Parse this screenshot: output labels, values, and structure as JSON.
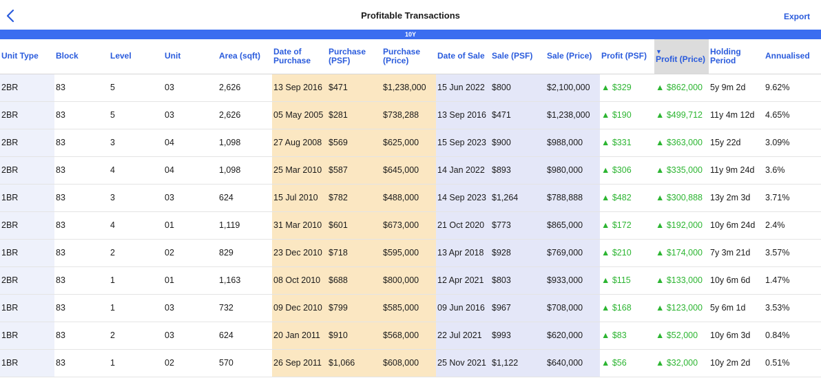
{
  "nav": {
    "title": "Profitable Transactions",
    "export_label": "Export",
    "back_icon": "chevron-left-icon"
  },
  "period": "10Y",
  "columns": [
    {
      "key": "unit_type",
      "label": "Unit Type"
    },
    {
      "key": "block",
      "label": "Block"
    },
    {
      "key": "level",
      "label": "Level"
    },
    {
      "key": "unit",
      "label": "Unit"
    },
    {
      "key": "area",
      "label": "Area (sqft)"
    },
    {
      "key": "date_purchase",
      "label": "Date of Purchase"
    },
    {
      "key": "purchase_psf",
      "label": "Purchase (PSF)"
    },
    {
      "key": "purchase_price",
      "label": "Purchase (Price)"
    },
    {
      "key": "date_sale",
      "label": "Date of Sale"
    },
    {
      "key": "sale_psf",
      "label": "Sale (PSF)"
    },
    {
      "key": "sale_price",
      "label": "Sale (Price)"
    },
    {
      "key": "profit_psf",
      "label": "Profit (PSF)"
    },
    {
      "key": "profit_price",
      "label": "Profit (Price)",
      "sorted": "▼"
    },
    {
      "key": "holding",
      "label": "Holding Period"
    },
    {
      "key": "annualised",
      "label": "Annualised"
    }
  ],
  "rows": [
    {
      "unit_type": "2BR",
      "block": "83",
      "level": "5",
      "unit": "03",
      "area": "2,626",
      "date_purchase": "13 Sep 2016",
      "purchase_psf": "$471",
      "purchase_price": "$1,238,000",
      "date_sale": "15 Jun 2022",
      "sale_psf": "$800",
      "sale_price": "$2,100,000",
      "profit_psf": "$329",
      "profit_price": "$862,000",
      "holding": "5y 9m 2d",
      "annualised": "9.62%"
    },
    {
      "unit_type": "2BR",
      "block": "83",
      "level": "5",
      "unit": "03",
      "area": "2,626",
      "date_purchase": "05 May 2005",
      "purchase_psf": "$281",
      "purchase_price": "$738,288",
      "date_sale": "13 Sep 2016",
      "sale_psf": "$471",
      "sale_price": "$1,238,000",
      "profit_psf": "$190",
      "profit_price": "$499,712",
      "holding": "11y 4m 12d",
      "annualised": "4.65%"
    },
    {
      "unit_type": "2BR",
      "block": "83",
      "level": "3",
      "unit": "04",
      "area": "1,098",
      "date_purchase": "27 Aug 2008",
      "purchase_psf": "$569",
      "purchase_price": "$625,000",
      "date_sale": "15 Sep 2023",
      "sale_psf": "$900",
      "sale_price": "$988,000",
      "profit_psf": "$331",
      "profit_price": "$363,000",
      "holding": "15y 22d",
      "annualised": "3.09%"
    },
    {
      "unit_type": "2BR",
      "block": "83",
      "level": "4",
      "unit": "04",
      "area": "1,098",
      "date_purchase": "25 Mar 2010",
      "purchase_psf": "$587",
      "purchase_price": "$645,000",
      "date_sale": "14 Jan 2022",
      "sale_psf": "$893",
      "sale_price": "$980,000",
      "profit_psf": "$306",
      "profit_price": "$335,000",
      "holding": "11y 9m 24d",
      "annualised": "3.6%"
    },
    {
      "unit_type": "1BR",
      "block": "83",
      "level": "3",
      "unit": "03",
      "area": "624",
      "date_purchase": "15 Jul 2010",
      "purchase_psf": "$782",
      "purchase_price": "$488,000",
      "date_sale": "14 Sep 2023",
      "sale_psf": "$1,264",
      "sale_price": "$788,888",
      "profit_psf": "$482",
      "profit_price": "$300,888",
      "holding": "13y 2m 3d",
      "annualised": "3.71%"
    },
    {
      "unit_type": "2BR",
      "block": "83",
      "level": "4",
      "unit": "01",
      "area": "1,119",
      "date_purchase": "31 Mar 2010",
      "purchase_psf": "$601",
      "purchase_price": "$673,000",
      "date_sale": "21 Oct 2020",
      "sale_psf": "$773",
      "sale_price": "$865,000",
      "profit_psf": "$172",
      "profit_price": "$192,000",
      "holding": "10y 6m 24d",
      "annualised": "2.4%"
    },
    {
      "unit_type": "1BR",
      "block": "83",
      "level": "2",
      "unit": "02",
      "area": "829",
      "date_purchase": "23 Dec 2010",
      "purchase_psf": "$718",
      "purchase_price": "$595,000",
      "date_sale": "13 Apr 2018",
      "sale_psf": "$928",
      "sale_price": "$769,000",
      "profit_psf": "$210",
      "profit_price": "$174,000",
      "holding": "7y 3m 21d",
      "annualised": "3.57%"
    },
    {
      "unit_type": "2BR",
      "block": "83",
      "level": "1",
      "unit": "01",
      "area": "1,163",
      "date_purchase": "08 Oct 2010",
      "purchase_psf": "$688",
      "purchase_price": "$800,000",
      "date_sale": "12 Apr 2021",
      "sale_psf": "$803",
      "sale_price": "$933,000",
      "profit_psf": "$115",
      "profit_price": "$133,000",
      "holding": "10y 6m 6d",
      "annualised": "1.47%"
    },
    {
      "unit_type": "1BR",
      "block": "83",
      "level": "1",
      "unit": "03",
      "area": "732",
      "date_purchase": "09 Dec 2010",
      "purchase_psf": "$799",
      "purchase_price": "$585,000",
      "date_sale": "09 Jun 2016",
      "sale_psf": "$967",
      "sale_price": "$708,000",
      "profit_psf": "$168",
      "profit_price": "$123,000",
      "holding": "5y 6m 1d",
      "annualised": "3.53%"
    },
    {
      "unit_type": "1BR",
      "block": "83",
      "level": "2",
      "unit": "03",
      "area": "624",
      "date_purchase": "20 Jan 2011",
      "purchase_psf": "$910",
      "purchase_price": "$568,000",
      "date_sale": "22 Jul 2021",
      "sale_psf": "$993",
      "sale_price": "$620,000",
      "profit_psf": "$83",
      "profit_price": "$52,000",
      "holding": "10y 6m 3d",
      "annualised": "0.84%"
    },
    {
      "unit_type": "1BR",
      "block": "83",
      "level": "1",
      "unit": "02",
      "area": "570",
      "date_purchase": "26 Sep 2011",
      "purchase_psf": "$1,066",
      "purchase_price": "$608,000",
      "date_sale": "25 Nov 2021",
      "sale_psf": "$1,122",
      "sale_price": "$640,000",
      "profit_psf": "$56",
      "profit_price": "$32,000",
      "holding": "10y 2m 2d",
      "annualised": "0.51%"
    }
  ],
  "profit_arrow": "▲",
  "colors": {
    "accent": "#2a5bdc",
    "period_bar": "#3b6df0",
    "purchase_bg": "#fbe7c2",
    "sale_bg": "#e4e7f8",
    "profit": "#2cb531"
  }
}
